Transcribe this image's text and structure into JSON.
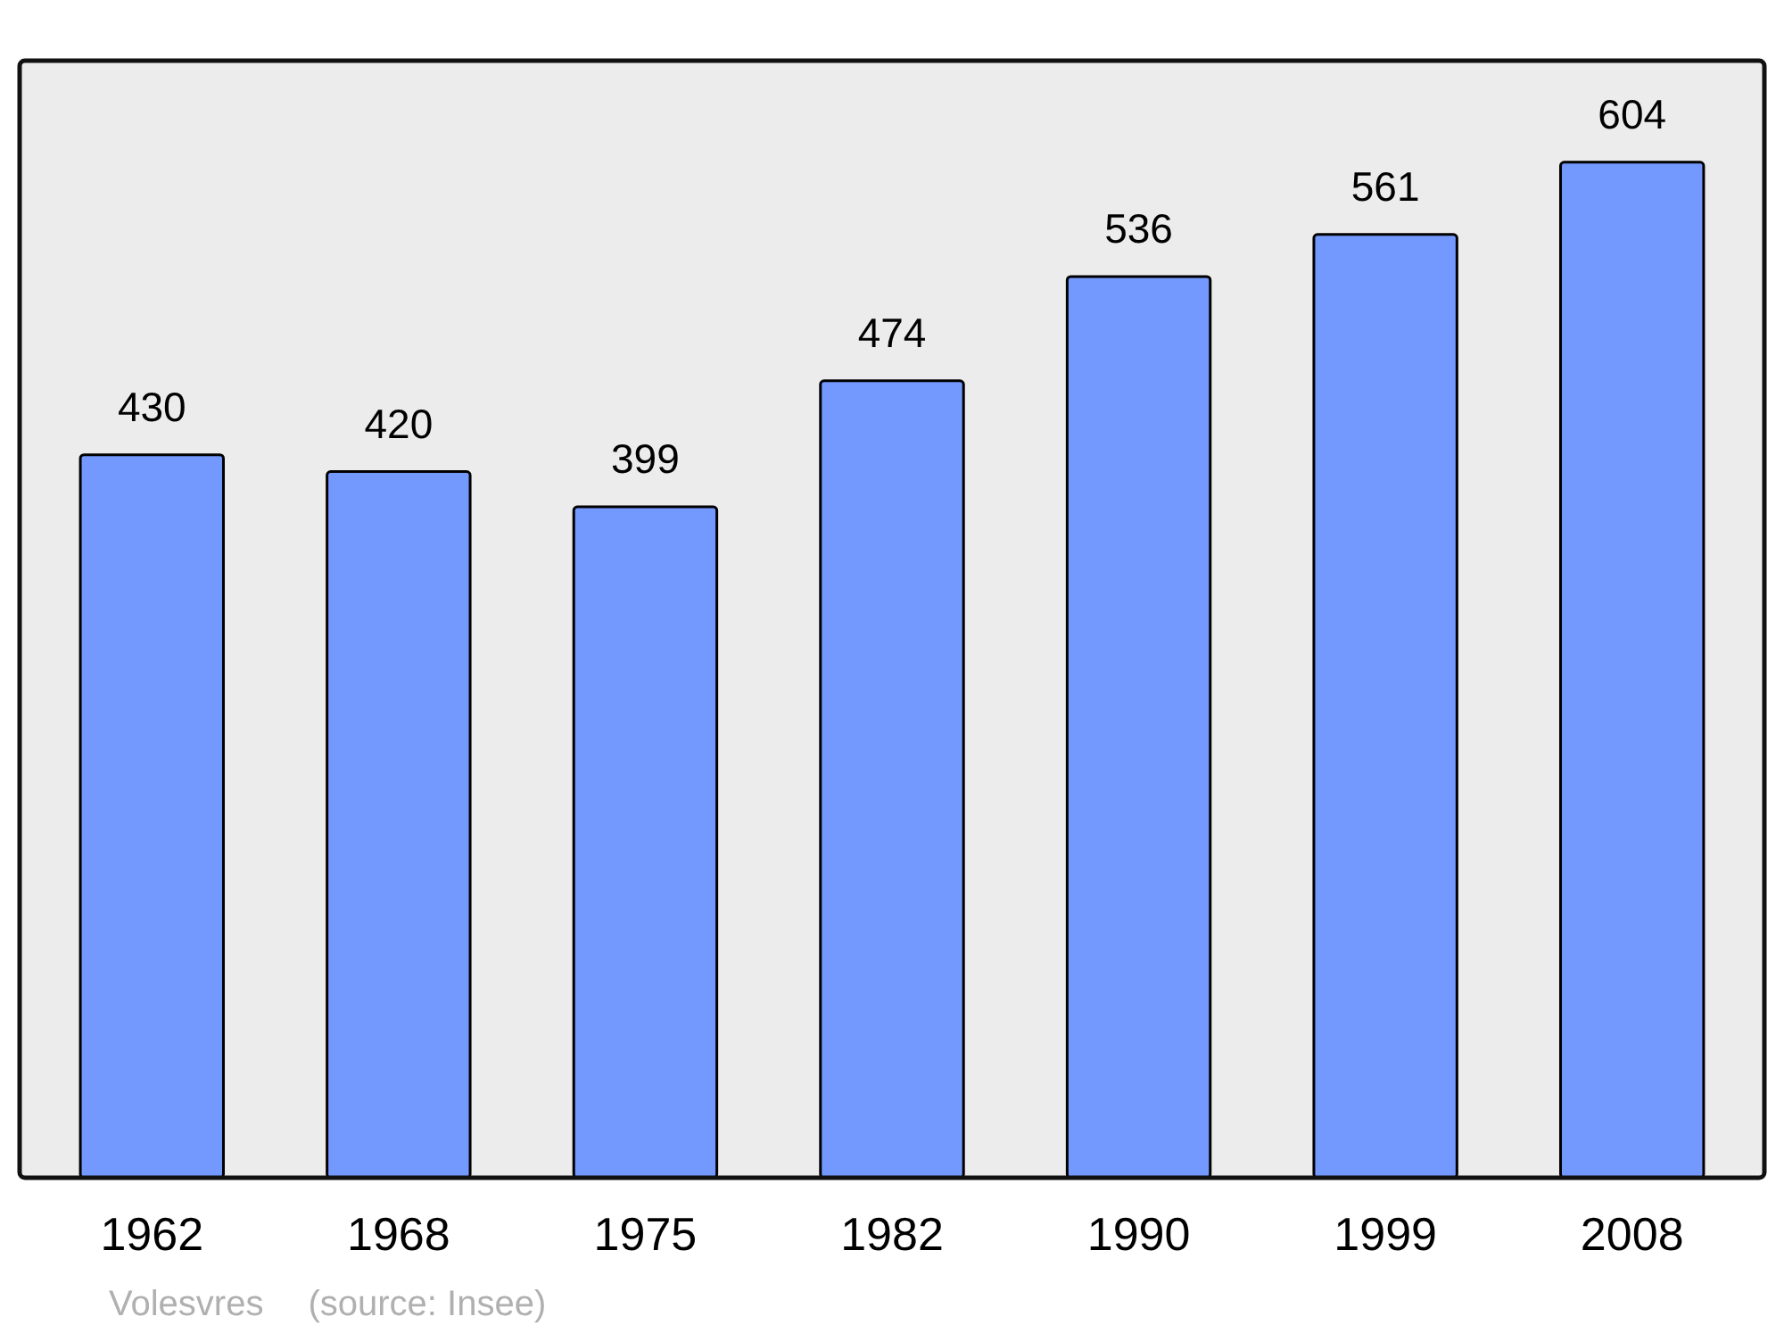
{
  "chart_data": {
    "type": "bar",
    "categories": [
      "1962",
      "1968",
      "1975",
      "1982",
      "1990",
      "1999",
      "2008"
    ],
    "values": [
      430,
      420,
      399,
      474,
      536,
      561,
      604
    ],
    "color": "#7399ff",
    "data_labels": true,
    "annotations": [
      "Volesvres",
      "(source: Insee)"
    ]
  }
}
